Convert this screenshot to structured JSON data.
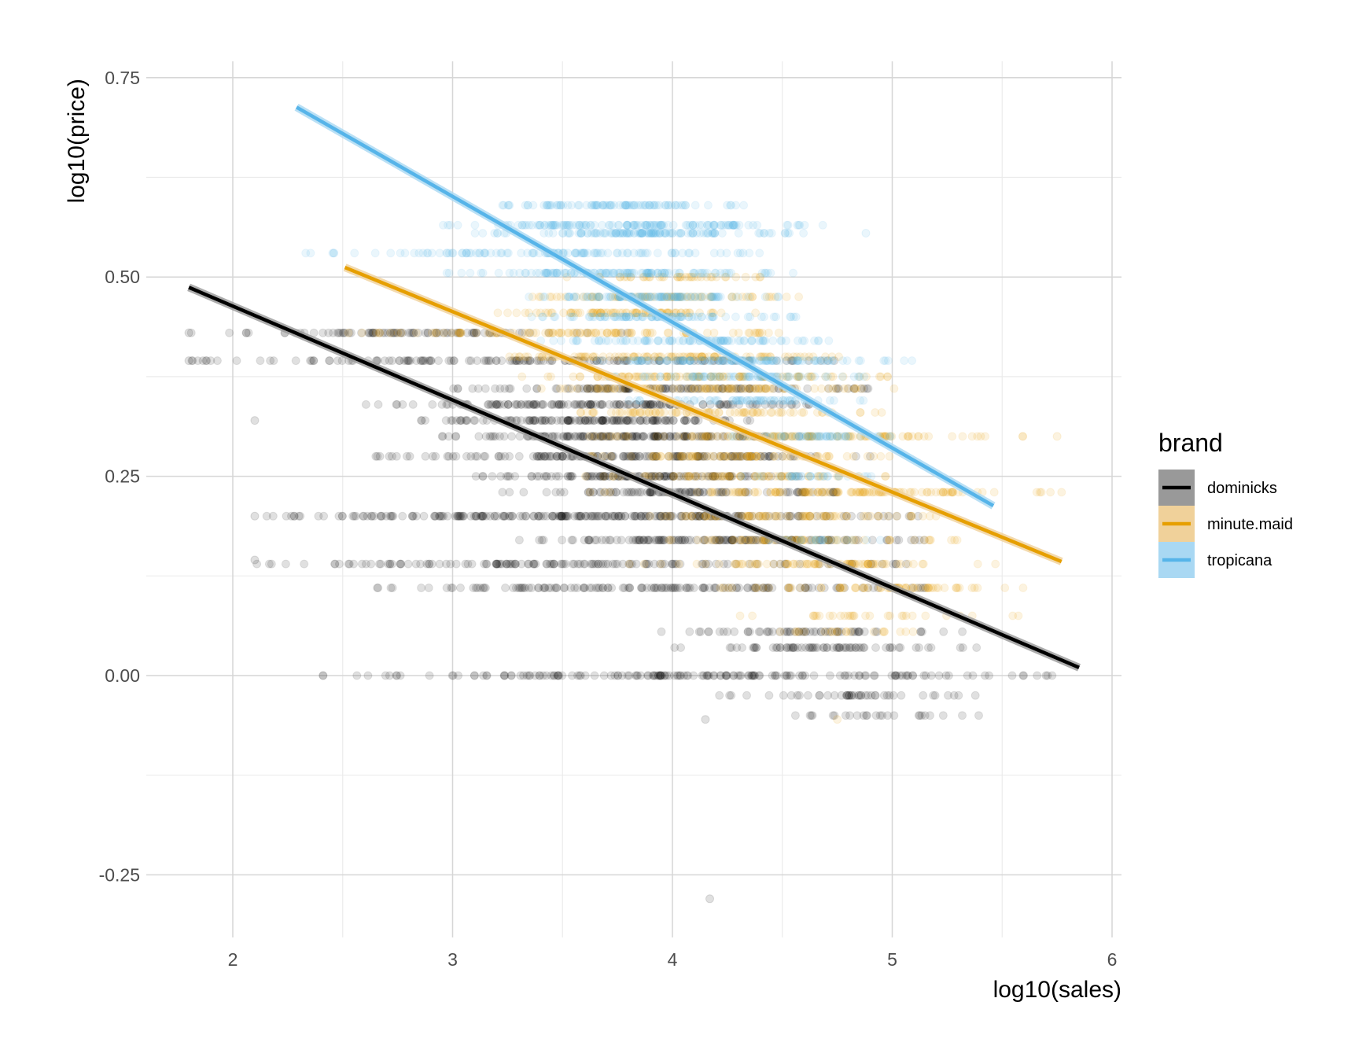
{
  "chart_data": {
    "type": "scatter",
    "title": "",
    "xlabel": "log10(sales)",
    "ylabel": "log10(price)",
    "xlim": [
      1.6,
      6.05
    ],
    "ylim": [
      -0.32,
      0.78
    ],
    "x_ticks": [
      2,
      3,
      4,
      5,
      6
    ],
    "x_tick_labels": [
      "2",
      "3",
      "4",
      "5",
      "6"
    ],
    "y_ticks": [
      -0.25,
      0.0,
      0.25,
      0.5,
      0.75
    ],
    "y_tick_labels": [
      "-0.25",
      "0.00",
      "0.25",
      "0.50",
      "0.75"
    ],
    "x_minor_ticks": [
      2.5,
      3.5,
      4.5,
      5.5
    ],
    "y_minor_ticks": [
      -0.125,
      0.125,
      0.375,
      0.625
    ],
    "grid": true,
    "legend": {
      "title": "brand",
      "position": "right",
      "entries": [
        "dominicks",
        "minute.maid",
        "tropicana"
      ]
    },
    "series": [
      {
        "name": "dominicks",
        "color": "#000000",
        "band_color": "#999999",
        "point_alpha": 0.12,
        "fit_line": {
          "x": [
            1.8,
            5.85
          ],
          "y": [
            0.487,
            0.01
          ]
        },
        "price_levels": [
          {
            "y": 0.43,
            "x_range": [
              1.8,
              3.8
            ],
            "count": 90
          },
          {
            "y": 0.395,
            "x_range": [
              1.8,
              4.9
            ],
            "count": 150
          },
          {
            "y": 0.36,
            "x_range": [
              3.0,
              4.95
            ],
            "count": 120
          },
          {
            "y": 0.34,
            "x_range": [
              2.6,
              4.7
            ],
            "count": 150
          },
          {
            "y": 0.32,
            "x_range": [
              2.85,
              4.4
            ],
            "count": 140
          },
          {
            "y": 0.3,
            "x_range": [
              2.95,
              4.6
            ],
            "count": 150
          },
          {
            "y": 0.275,
            "x_range": [
              2.65,
              4.95
            ],
            "count": 160
          },
          {
            "y": 0.25,
            "x_range": [
              3.0,
              4.6
            ],
            "count": 120
          },
          {
            "y": 0.23,
            "x_range": [
              3.2,
              4.8
            ],
            "count": 100
          },
          {
            "y": 0.2,
            "x_range": [
              2.1,
              5.2
            ],
            "count": 240
          },
          {
            "y": 0.17,
            "x_range": [
              3.3,
              5.15
            ],
            "count": 140
          },
          {
            "y": 0.14,
            "x_range": [
              2.1,
              5.1
            ],
            "count": 140
          },
          {
            "y": 0.11,
            "x_range": [
              2.65,
              5.15
            ],
            "count": 140
          },
          {
            "y": 0.055,
            "x_range": [
              3.9,
              5.4
            ],
            "count": 60
          },
          {
            "y": 0.035,
            "x_range": [
              3.9,
              5.4
            ],
            "count": 70
          },
          {
            "y": 0.0,
            "x_range": [
              2.4,
              5.85
            ],
            "count": 170
          },
          {
            "y": -0.025,
            "x_range": [
              4.2,
              5.45
            ],
            "count": 45
          },
          {
            "y": -0.05,
            "x_range": [
              4.5,
              5.4
            ],
            "count": 25
          }
        ],
        "outliers": [
          [
            4.17,
            -0.28
          ],
          [
            4.15,
            -0.055
          ],
          [
            2.1,
            0.32
          ],
          [
            1.8,
            0.43
          ],
          [
            1.8,
            0.395
          ],
          [
            2.1,
            0.2
          ],
          [
            2.1,
            0.145
          ]
        ]
      },
      {
        "name": "minute.maid",
        "color": "#E69F00",
        "band_color": "#F0D19A",
        "point_alpha": 0.12,
        "fit_line": {
          "x": [
            2.51,
            5.77
          ],
          "y": [
            0.512,
            0.143
          ]
        },
        "price_levels": [
          {
            "y": 0.5,
            "x_range": [
              3.5,
              4.5
            ],
            "count": 40
          },
          {
            "y": 0.475,
            "x_range": [
              3.3,
              4.6
            ],
            "count": 70
          },
          {
            "y": 0.455,
            "x_range": [
              3.2,
              4.5
            ],
            "count": 80
          },
          {
            "y": 0.43,
            "x_range": [
              2.5,
              4.55
            ],
            "count": 100
          },
          {
            "y": 0.4,
            "x_range": [
              3.2,
              4.8
            ],
            "count": 100
          },
          {
            "y": 0.375,
            "x_range": [
              3.3,
              5.0
            ],
            "count": 100
          },
          {
            "y": 0.36,
            "x_range": [
              3.3,
              5.05
            ],
            "count": 90
          },
          {
            "y": 0.33,
            "x_range": [
              3.5,
              5.0
            ],
            "count": 80
          },
          {
            "y": 0.3,
            "x_range": [
              3.6,
              5.7
            ],
            "count": 120
          },
          {
            "y": 0.275,
            "x_range": [
              3.6,
              5.0
            ],
            "count": 80
          },
          {
            "y": 0.25,
            "x_range": [
              3.6,
              5.0
            ],
            "count": 70
          },
          {
            "y": 0.23,
            "x_range": [
              3.6,
              5.8
            ],
            "count": 120
          },
          {
            "y": 0.2,
            "x_range": [
              3.7,
              5.2
            ],
            "count": 80
          },
          {
            "y": 0.17,
            "x_range": [
              3.9,
              5.3
            ],
            "count": 70
          },
          {
            "y": 0.14,
            "x_range": [
              3.8,
              5.5
            ],
            "count": 80
          },
          {
            "y": 0.11,
            "x_range": [
              4.2,
              5.6
            ],
            "count": 70
          },
          {
            "y": 0.075,
            "x_range": [
              4.3,
              5.6
            ],
            "count": 30
          },
          {
            "y": 0.055,
            "x_range": [
              4.4,
              5.2
            ],
            "count": 20
          }
        ],
        "outliers": [
          [
            4.75,
            -0.055
          ],
          [
            5.75,
            0.3
          ]
        ]
      },
      {
        "name": "tropicana",
        "color": "#56B4E9",
        "band_color": "#A9D8F3",
        "point_alpha": 0.12,
        "fit_line": {
          "x": [
            2.29,
            5.46
          ],
          "y": [
            0.713,
            0.213
          ]
        },
        "price_levels": [
          {
            "y": 0.59,
            "x_range": [
              3.2,
              4.35
            ],
            "count": 90
          },
          {
            "y": 0.565,
            "x_range": [
              2.95,
              4.7
            ],
            "count": 130
          },
          {
            "y": 0.555,
            "x_range": [
              3.1,
              4.6
            ],
            "count": 120
          },
          {
            "y": 0.53,
            "x_range": [
              2.3,
              4.5
            ],
            "count": 110
          },
          {
            "y": 0.505,
            "x_range": [
              2.95,
              4.55
            ],
            "count": 120
          },
          {
            "y": 0.475,
            "x_range": [
              3.3,
              4.5
            ],
            "count": 110
          },
          {
            "y": 0.45,
            "x_range": [
              3.3,
              4.6
            ],
            "count": 90
          },
          {
            "y": 0.42,
            "x_range": [
              3.4,
              4.75
            ],
            "count": 90
          },
          {
            "y": 0.395,
            "x_range": [
              3.5,
              5.15
            ],
            "count": 120
          },
          {
            "y": 0.375,
            "x_range": [
              3.7,
              4.9
            ],
            "count": 70
          },
          {
            "y": 0.345,
            "x_range": [
              3.8,
              4.9
            ],
            "count": 60
          },
          {
            "y": 0.3,
            "x_range": [
              4.2,
              5.1
            ],
            "count": 50
          },
          {
            "y": 0.25,
            "x_range": [
              4.3,
              5.0
            ],
            "count": 30
          },
          {
            "y": 0.17,
            "x_range": [
              4.4,
              5.0
            ],
            "count": 20
          }
        ],
        "outliers": [
          [
            4.88,
            0.555
          ]
        ]
      }
    ]
  }
}
